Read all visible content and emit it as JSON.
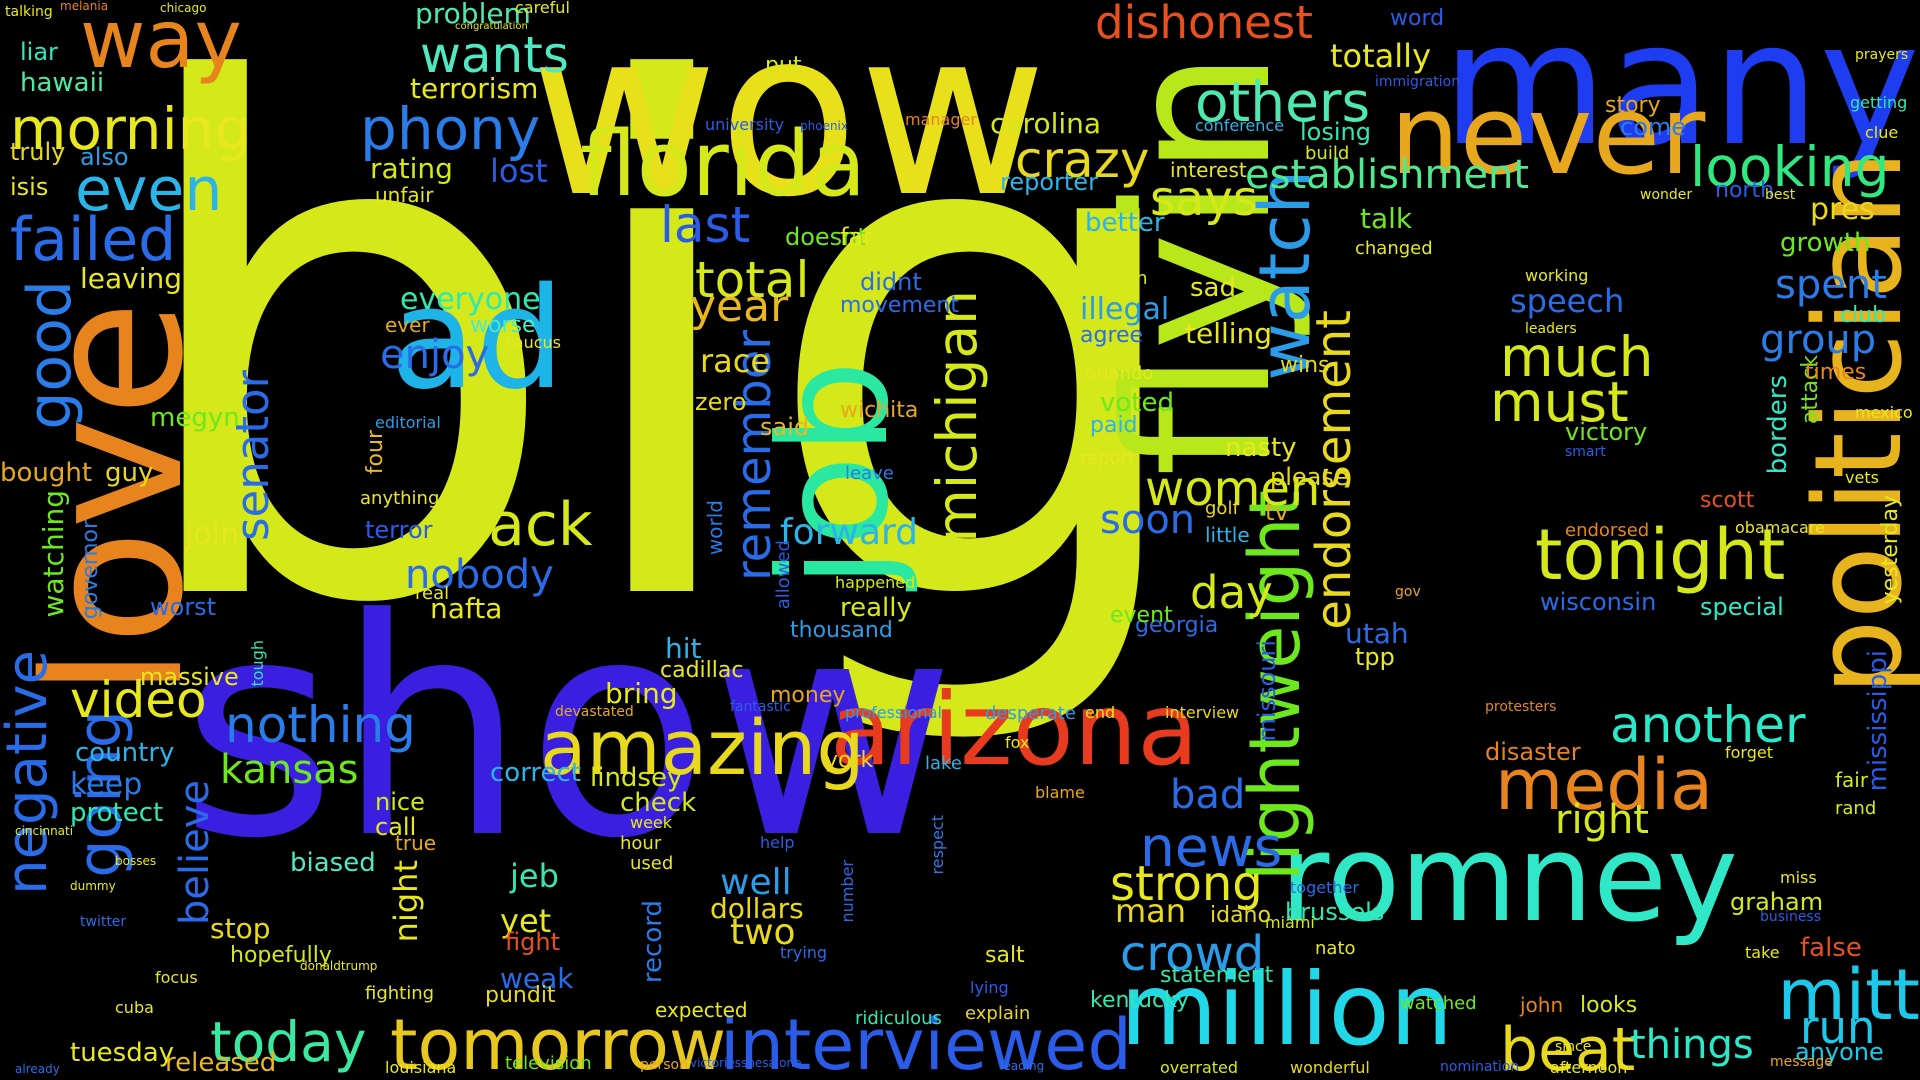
{
  "background": "#000000",
  "words": [
    {
      "text": "big",
      "color": "#d4e81a"
    },
    {
      "text": "show",
      "color": "#3a1fe0"
    },
    {
      "text": "wow",
      "color": "#e8e01a"
    },
    {
      "text": "many",
      "color": "#1e3cf0"
    },
    {
      "text": "love",
      "color": "#e8841e"
    },
    {
      "text": "flyin",
      "color": "#b8e81a"
    },
    {
      "text": "job",
      "color": "#2ae8a0"
    },
    {
      "text": "ad",
      "color": "#1eb4e8"
    },
    {
      "text": "romney",
      "color": "#30e8c8"
    },
    {
      "text": "politician",
      "color": "#e8b41e"
    },
    {
      "text": "million",
      "color": "#20d8e8"
    },
    {
      "text": "arizona",
      "color": "#e83a1e"
    },
    {
      "text": "never",
      "color": "#e8a81e"
    },
    {
      "text": "florida",
      "color": "#d4e81a"
    },
    {
      "text": "amazing",
      "color": "#e8d81e"
    },
    {
      "text": "interviewed",
      "color": "#2a5ce8"
    },
    {
      "text": "tomorrow",
      "color": "#e8c81e"
    },
    {
      "text": "lightweight",
      "color": "#6ee81e"
    },
    {
      "text": "watch",
      "color": "#2a9ce8"
    },
    {
      "text": "tonight",
      "color": "#d4e81a"
    },
    {
      "text": "media",
      "color": "#e8841e"
    },
    {
      "text": "mitt",
      "color": "#1ec8e8"
    },
    {
      "text": "beat",
      "color": "#e8d81e"
    },
    {
      "text": "going",
      "color": "#2a6ce8"
    },
    {
      "text": "negative",
      "color": "#2a6ce8"
    },
    {
      "text": "good",
      "color": "#2a7ce8"
    },
    {
      "text": "way",
      "color": "#e8841e"
    },
    {
      "text": "failed",
      "color": "#2a6ce8"
    },
    {
      "text": "even",
      "color": "#2ab4e8"
    },
    {
      "text": "morning",
      "color": "#e8e81e"
    },
    {
      "text": "phony",
      "color": "#2a7ce8"
    },
    {
      "text": "others",
      "color": "#50e8b0"
    },
    {
      "text": "looking",
      "color": "#30e880"
    },
    {
      "text": "establishment",
      "color": "#50e890"
    },
    {
      "text": "michigan",
      "color": "#d4e81a"
    },
    {
      "text": "endorsement",
      "color": "#e8d81e"
    },
    {
      "text": "remember",
      "color": "#2a6ce8"
    },
    {
      "text": "news",
      "color": "#2a6ce8"
    },
    {
      "text": "crowd",
      "color": "#2a9ce8"
    },
    {
      "text": "another",
      "color": "#2ae8c8"
    },
    {
      "text": "much",
      "color": "#d4e81a"
    },
    {
      "text": "must",
      "color": "#d4e81a"
    },
    {
      "text": "strong",
      "color": "#e8e81e"
    },
    {
      "text": "back",
      "color": "#d4e81a"
    },
    {
      "text": "nothing",
      "color": "#2a7ce8"
    },
    {
      "text": "today",
      "color": "#3ae8a0"
    },
    {
      "text": "video",
      "color": "#e8e81e"
    },
    {
      "text": "senator",
      "color": "#2a6ce8"
    },
    {
      "text": "believe",
      "color": "#2a6ce8"
    },
    {
      "text": "crazy",
      "color": "#e8d81e"
    },
    {
      "text": "dishonest",
      "color": "#e8501e"
    },
    {
      "text": "wants",
      "color": "#50e8c0"
    },
    {
      "text": "says",
      "color": "#d4e81a"
    },
    {
      "text": "total",
      "color": "#d4e81a"
    },
    {
      "text": "last",
      "color": "#2a5ce8"
    },
    {
      "text": "enjoy",
      "color": "#2a6ce8"
    },
    {
      "text": "women",
      "color": "#d4e81a"
    },
    {
      "text": "soon",
      "color": "#2a6ce8"
    },
    {
      "text": "nobody",
      "color": "#2a6ce8"
    },
    {
      "text": "forward",
      "color": "#2ab4e8"
    },
    {
      "text": "day",
      "color": "#d4e81a"
    },
    {
      "text": "kansas",
      "color": "#6ee81e"
    },
    {
      "text": "things",
      "color": "#2ae8c8"
    },
    {
      "text": "run",
      "color": "#1ec8e8"
    },
    {
      "text": "group",
      "color": "#2a7ce8"
    },
    {
      "text": "spent",
      "color": "#2a7ce8"
    },
    {
      "text": "year",
      "color": "#e8b81e"
    },
    {
      "text": "right",
      "color": "#d4e81a"
    },
    {
      "text": "bad",
      "color": "#2a6ce8"
    },
    {
      "text": "well",
      "color": "#2a9ce8"
    },
    {
      "text": "two",
      "color": "#e8d81e"
    },
    {
      "text": "jeb",
      "color": "#30e8b0"
    },
    {
      "text": "yet",
      "color": "#e8e81e"
    },
    {
      "text": "night",
      "color": "#e8e81e"
    },
    {
      "text": "man",
      "color": "#e8d81e"
    },
    {
      "text": "race",
      "color": "#e8d81e"
    },
    {
      "text": "wisconsin",
      "color": "#2a6ce8"
    },
    {
      "text": "speech",
      "color": "#2a6ce8"
    },
    {
      "text": "totally",
      "color": "#e8e81e"
    },
    {
      "text": "terrorism",
      "color": "#e8e81e"
    },
    {
      "text": "problem",
      "color": "#50e8b0"
    },
    {
      "text": "carolina",
      "color": "#d4e81a"
    },
    {
      "text": "rating",
      "color": "#d4e81a"
    },
    {
      "text": "lost",
      "color": "#2a5ce8"
    },
    {
      "text": "reporter",
      "color": "#2ab4e8"
    },
    {
      "text": "doesnt",
      "color": "#6ee81e"
    },
    {
      "text": "everyone",
      "color": "#30e8b0"
    },
    {
      "text": "worse",
      "color": "#50e8c0"
    },
    {
      "text": "join",
      "color": "#e8e81e"
    },
    {
      "text": "keep",
      "color": "#2a7ce8"
    },
    {
      "text": "country",
      "color": "#2ab4e8"
    },
    {
      "text": "protect",
      "color": "#30e8b0"
    },
    {
      "text": "bought",
      "color": "#e8a81e"
    },
    {
      "text": "guy",
      "color": "#e8d81e"
    },
    {
      "text": "tuesday",
      "color": "#e8e81e"
    },
    {
      "text": "released",
      "color": "#e8b81e"
    },
    {
      "text": "hawaii",
      "color": "#50e8a0"
    },
    {
      "text": "liar",
      "color": "#30e8c0"
    },
    {
      "text": "isis",
      "color": "#e8e81e"
    },
    {
      "text": "truly",
      "color": "#e8d81e"
    },
    {
      "text": "also",
      "color": "#2a9ce8"
    },
    {
      "text": "massive",
      "color": "#e8e81e"
    },
    {
      "text": "leaving",
      "color": "#e8e81e"
    },
    {
      "text": "megyn",
      "color": "#6ee81e"
    },
    {
      "text": "watching",
      "color": "#6ee81e"
    },
    {
      "text": "governor",
      "color": "#2a7ce8"
    },
    {
      "text": "worst",
      "color": "#2a6ce8"
    },
    {
      "text": "stop",
      "color": "#e8d81e"
    },
    {
      "text": "hopefully",
      "color": "#d4e81a"
    },
    {
      "text": "biased",
      "color": "#50e8c0"
    },
    {
      "text": "call",
      "color": "#e8e81e"
    },
    {
      "text": "true",
      "color": "#e8a81e"
    },
    {
      "text": "nice",
      "color": "#d4e81a"
    },
    {
      "text": "nafta",
      "color": "#e8e81e"
    },
    {
      "text": "terror",
      "color": "#2a5ce8"
    },
    {
      "text": "four",
      "color": "#e8b81e"
    },
    {
      "text": "correct",
      "color": "#2ab4e8"
    },
    {
      "text": "lindsey",
      "color": "#d4e81a"
    },
    {
      "text": "check",
      "color": "#d4e81a"
    },
    {
      "text": "bring",
      "color": "#e8e81e"
    },
    {
      "text": "hit",
      "color": "#2ab4e8"
    },
    {
      "text": "thousand",
      "color": "#2a9ce8"
    },
    {
      "text": "really",
      "color": "#d4e81a"
    },
    {
      "text": "said",
      "color": "#e8b81e"
    },
    {
      "text": "zero",
      "color": "#e8d81e"
    },
    {
      "text": "didnt",
      "color": "#2a6ce8"
    },
    {
      "text": "movement",
      "color": "#2a6ce8"
    },
    {
      "text": "wichita",
      "color": "#e8a81e"
    },
    {
      "text": "dollars",
      "color": "#e8d81e"
    },
    {
      "text": "weak",
      "color": "#2a6ce8"
    },
    {
      "text": "fight",
      "color": "#e8501e"
    },
    {
      "text": "pundit",
      "color": "#e8d81e"
    },
    {
      "text": "record",
      "color": "#2a7ce8"
    },
    {
      "text": "expected",
      "color": "#e8e81e"
    },
    {
      "text": "cadillac",
      "color": "#e8e81e"
    },
    {
      "text": "money",
      "color": "#e8a81e"
    },
    {
      "text": "world",
      "color": "#2a7ce8"
    },
    {
      "text": "illegal",
      "color": "#2a9ce8"
    },
    {
      "text": "telling",
      "color": "#e8e81e"
    },
    {
      "text": "better",
      "color": "#2ab4e8"
    },
    {
      "text": "sad",
      "color": "#e8e81e"
    },
    {
      "text": "voted",
      "color": "#6ee81e"
    },
    {
      "text": "paid",
      "color": "#2ab4e8"
    },
    {
      "text": "nasty",
      "color": "#e8e81e"
    },
    {
      "text": "please",
      "color": "#e8d81e"
    },
    {
      "text": "missouri",
      "color": "#2a5ce8"
    },
    {
      "text": "utah",
      "color": "#2a6ce8"
    },
    {
      "text": "tpp",
      "color": "#e8e81e"
    },
    {
      "text": "talk",
      "color": "#6ee81e"
    },
    {
      "text": "changed",
      "color": "#e8e81e"
    },
    {
      "text": "losing",
      "color": "#30e8b0"
    },
    {
      "text": "build",
      "color": "#d4e81a"
    },
    {
      "text": "come",
      "color": "#2a7ce8"
    },
    {
      "text": "story",
      "color": "#e8a81e"
    },
    {
      "text": "north",
      "color": "#2a5ce8"
    },
    {
      "text": "pres",
      "color": "#e8d81e"
    },
    {
      "text": "growth",
      "color": "#6ee81e"
    },
    {
      "text": "club",
      "color": "#30e8b0"
    },
    {
      "text": "attack",
      "color": "#6ee81e"
    },
    {
      "text": "borders",
      "color": "#30e8c8"
    },
    {
      "text": "times",
      "color": "#e8841e"
    },
    {
      "text": "victory",
      "color": "#6ee81e"
    },
    {
      "text": "scott",
      "color": "#e8501e"
    },
    {
      "text": "endorsed",
      "color": "#e8841e"
    },
    {
      "text": "special",
      "color": "#30e8c8"
    },
    {
      "text": "graham",
      "color": "#d4e81a"
    },
    {
      "text": "false",
      "color": "#e8501e"
    },
    {
      "text": "anyone",
      "color": "#1ec8e8"
    },
    {
      "text": "brussels",
      "color": "#30e8b0"
    },
    {
      "text": "statement",
      "color": "#30e8b0"
    },
    {
      "text": "kentucky",
      "color": "#30e8b0"
    },
    {
      "text": "idaho",
      "color": "#e8d81e"
    },
    {
      "text": "disaster",
      "color": "#e8841e"
    },
    {
      "text": "fair",
      "color": "#d4e81a"
    },
    {
      "text": "rand",
      "color": "#d4e81a"
    },
    {
      "text": "yesterday",
      "color": "#e8e81e"
    },
    {
      "text": "mississippi",
      "color": "#2a5ce8"
    },
    {
      "text": "watched",
      "color": "#6ee81e"
    },
    {
      "text": "john",
      "color": "#e8841e"
    },
    {
      "text": "looks",
      "color": "#d4e81a"
    },
    {
      "text": "georgia",
      "color": "#2a6ce8"
    },
    {
      "text": "event",
      "color": "#6ee81e"
    },
    {
      "text": "agree",
      "color": "#2a6ce8"
    },
    {
      "text": "dayton",
      "color": "#d4e81a"
    },
    {
      "text": "orlando",
      "color": "#e8e81e"
    },
    {
      "text": "report",
      "color": "#e8e81e"
    },
    {
      "text": "tv",
      "color": "#e8a81e"
    },
    {
      "text": "wins",
      "color": "#e8d81e"
    },
    {
      "text": "golf",
      "color": "#e8d81e"
    },
    {
      "text": "little",
      "color": "#2ab4e8"
    },
    {
      "text": "interest",
      "color": "#e8e81e"
    },
    {
      "text": "conference",
      "color": "#2ab4e8"
    },
    {
      "text": "university",
      "color": "#2a5ce8"
    },
    {
      "text": "put",
      "color": "#d4e81a"
    },
    {
      "text": "word",
      "color": "#2a5ce8"
    },
    {
      "text": "immigration",
      "color": "#2a5ce8"
    },
    {
      "text": "manager",
      "color": "#e8841e"
    },
    {
      "text": "far",
      "color": "#e8e81e"
    },
    {
      "text": "unfair",
      "color": "#e8e81e"
    },
    {
      "text": "etc",
      "color": "#d4e81a"
    },
    {
      "text": "real",
      "color": "#e8e81e"
    },
    {
      "text": "anything",
      "color": "#e8e81e"
    },
    {
      "text": "editorial",
      "color": "#2a9ce8"
    },
    {
      "text": "ever",
      "color": "#e8a81e"
    },
    {
      "text": "caucus",
      "color": "#e8e81e"
    },
    {
      "text": "leave",
      "color": "#2a7ce8"
    },
    {
      "text": "happened",
      "color": "#d4e81a"
    },
    {
      "text": "allowed",
      "color": "#2a5ce8"
    },
    {
      "text": "york",
      "color": "#e8d81e"
    },
    {
      "text": "hour",
      "color": "#e8e81e"
    },
    {
      "text": "used",
      "color": "#e8e81e"
    },
    {
      "text": "week",
      "color": "#e8e81e"
    },
    {
      "text": "help",
      "color": "#2a5ce8"
    },
    {
      "text": "trying",
      "color": "#2a6ce8"
    },
    {
      "text": "number",
      "color": "#2a6ce8"
    },
    {
      "text": "ridiculous",
      "color": "#30e8b0"
    },
    {
      "text": "explain",
      "color": "#e8d81e"
    },
    {
      "text": "lying",
      "color": "#2a5ce8"
    },
    {
      "text": "salt",
      "color": "#e8e81e"
    },
    {
      "text": "lake",
      "color": "#2ab4e8"
    },
    {
      "text": "respect",
      "color": "#2a7ce8"
    },
    {
      "text": "desperate",
      "color": "#2a9ce8"
    },
    {
      "text": "professional",
      "color": "#2a9ce8"
    },
    {
      "text": "fox",
      "color": "#e8e81e"
    },
    {
      "text": "blame",
      "color": "#e8a81e"
    },
    {
      "text": "interview",
      "color": "#e8d81e"
    },
    {
      "text": "end",
      "color": "#e8e81e"
    },
    {
      "text": "miami",
      "color": "#d4e81a"
    },
    {
      "text": "nato",
      "color": "#e8e81e"
    },
    {
      "text": "television",
      "color": "#6ee81e"
    },
    {
      "text": "louisiana",
      "color": "#e8e81e"
    },
    {
      "text": "fighting",
      "color": "#e8e81e"
    },
    {
      "text": "focus",
      "color": "#e8e81e"
    },
    {
      "text": "cuba",
      "color": "#e8e81e"
    },
    {
      "text": "devastated",
      "color": "#e8a81e"
    },
    {
      "text": "fantastic",
      "color": "#2a5ce8"
    },
    {
      "text": "overrated",
      "color": "#d4e81a"
    },
    {
      "text": "wonderful",
      "color": "#e8d81e"
    },
    {
      "text": "nomination",
      "color": "#2a5ce8"
    },
    {
      "text": "afternoon",
      "color": "#e8e81e"
    },
    {
      "text": "since",
      "color": "#e8e81e"
    },
    {
      "text": "message",
      "color": "#e8a81e"
    },
    {
      "text": "take",
      "color": "#e8e81e"
    },
    {
      "text": "business",
      "color": "#2a5ce8"
    },
    {
      "text": "miss",
      "color": "#e8e81e"
    },
    {
      "text": "together",
      "color": "#2a6ce8"
    },
    {
      "text": "vets",
      "color": "#e8e81e"
    },
    {
      "text": "mexico",
      "color": "#e8e81e"
    },
    {
      "text": "working",
      "color": "#e8e81e"
    },
    {
      "text": "leaders",
      "color": "#e8e81e"
    },
    {
      "text": "wonder",
      "color": "#e8e81e"
    },
    {
      "text": "best",
      "color": "#e8e81e"
    },
    {
      "text": "clue",
      "color": "#e8e81e"
    },
    {
      "text": "getting",
      "color": "#30e8b0"
    },
    {
      "text": "prayers",
      "color": "#e8e81e"
    },
    {
      "text": "obamacare",
      "color": "#e8e81e"
    },
    {
      "text": "forget",
      "color": "#e8e81e"
    },
    {
      "text": "smart",
      "color": "#2a5ce8"
    },
    {
      "text": "protesters",
      "color": "#e8841e"
    },
    {
      "text": "gov",
      "color": "#e8a81e"
    },
    {
      "text": "talking",
      "color": "#e8e81e"
    },
    {
      "text": "melania",
      "color": "#e8841e"
    },
    {
      "text": "chicago",
      "color": "#e8e81e"
    },
    {
      "text": "careful",
      "color": "#e8e81e"
    },
    {
      "text": "phoenix",
      "color": "#2a5ce8"
    },
    {
      "text": "tough",
      "color": "#30e8b0"
    },
    {
      "text": "twitter",
      "color": "#2a6ce8"
    },
    {
      "text": "dummy",
      "color": "#e8e81e"
    },
    {
      "text": "bosses",
      "color": "#e8e81e"
    },
    {
      "text": "cincinnati",
      "color": "#e8e81e"
    },
    {
      "text": "congratulation",
      "color": "#e8e81e"
    },
    {
      "text": "victoriesshesalone",
      "color": "#2a5ce8"
    },
    {
      "text": "donaldtrump",
      "color": "#e8e81e"
    },
    {
      "text": "person",
      "color": "#e8a81e"
    },
    {
      "text": "leading",
      "color": "#2a6ce8"
    },
    {
      "text": "already",
      "color": "#2a6ce8"
    }
  ]
}
